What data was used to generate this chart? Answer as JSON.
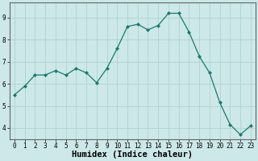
{
  "x": [
    0,
    1,
    2,
    3,
    4,
    5,
    6,
    7,
    8,
    9,
    10,
    11,
    12,
    13,
    14,
    15,
    16,
    17,
    18,
    19,
    20,
    21,
    22,
    23
  ],
  "y": [
    5.5,
    5.9,
    6.4,
    6.4,
    6.6,
    6.4,
    6.7,
    6.5,
    6.05,
    6.7,
    7.6,
    8.6,
    8.7,
    8.45,
    8.65,
    9.2,
    9.2,
    8.35,
    7.25,
    6.5,
    5.15,
    4.15,
    3.7,
    4.1
  ],
  "line_color": "#1a7a6e",
  "marker": "D",
  "marker_size": 2.0,
  "bg_color": "#cce8e8",
  "grid_color": "#aacece",
  "xlabel": "Humidex (Indice chaleur)",
  "xlim": [
    -0.5,
    23.5
  ],
  "ylim": [
    3.5,
    9.7
  ],
  "yticks": [
    4,
    5,
    6,
    7,
    8,
    9
  ],
  "xticks": [
    0,
    1,
    2,
    3,
    4,
    5,
    6,
    7,
    8,
    9,
    10,
    11,
    12,
    13,
    14,
    15,
    16,
    17,
    18,
    19,
    20,
    21,
    22,
    23
  ],
  "tick_fontsize": 5.5,
  "xlabel_fontsize": 7.5,
  "border_color": "#666666"
}
